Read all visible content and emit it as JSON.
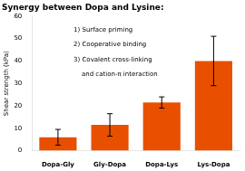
{
  "chart_data": {
    "type": "bar",
    "title": "Synergy between Dopa and Lysine:",
    "categories": [
      "Dopa-Gly",
      "Gly-Dopa",
      "Dopa-Lys",
      "Lys-Dopa"
    ],
    "values": [
      6.0,
      11.5,
      21.5,
      40.0
    ],
    "errors": [
      3.5,
      5.0,
      2.5,
      11.0
    ],
    "color": "#E85000",
    "ylim": [
      0,
      60
    ],
    "yticks": [
      0,
      10,
      20,
      30,
      40,
      50,
      60
    ],
    "ylabel": "Shear strength (kPa)",
    "annotations": [
      "1) Surface priming",
      "2) Cooperative binding",
      "3) Covalent cross-linking",
      "    and cation-π interaction"
    ],
    "grid": false
  }
}
